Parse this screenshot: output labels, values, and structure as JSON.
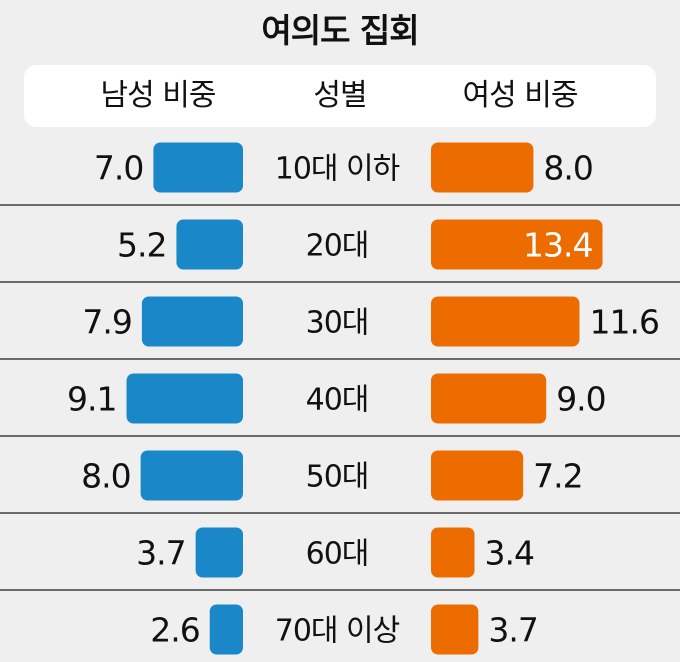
{
  "title": "여의도 집회",
  "header": {
    "male": "남성 비중",
    "category": "성별",
    "female": "여성 비중"
  },
  "chart_data": {
    "type": "bar",
    "title": "여의도 집회",
    "categories": [
      "10대 이하",
      "20대",
      "30대",
      "40대",
      "50대",
      "60대",
      "70대 이상"
    ],
    "series": [
      {
        "name": "남성 비중",
        "color": "#1a87c8",
        "values": [
          7.0,
          5.2,
          7.9,
          9.1,
          8.0,
          3.7,
          2.6
        ]
      },
      {
        "name": "여성 비중",
        "color": "#ec6c00",
        "values": [
          8.0,
          13.4,
          11.6,
          9.0,
          7.2,
          3.4,
          3.7
        ]
      }
    ],
    "value_labels": {
      "male": [
        "7.0",
        "5.2",
        "7.9",
        "9.1",
        "8.0",
        "3.7",
        "2.6"
      ],
      "female": [
        "8.0",
        "13.4",
        "11.6",
        "9.0",
        "7.2",
        "3.4",
        "3.7"
      ]
    },
    "orientation": "horizontal-butterfly",
    "grid": false
  }
}
